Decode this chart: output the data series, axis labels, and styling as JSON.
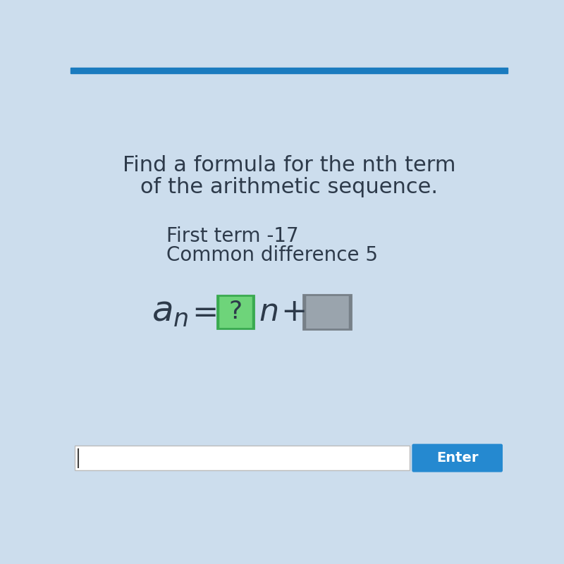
{
  "background_color": "#ccdded",
  "title_line1": "Find a formula for the nth term",
  "title_line2": "of the arithmetic sequence.",
  "info_line1": "First term -17",
  "info_line2": "Common difference 5",
  "text_color": "#2d3a4a",
  "green_box_color": "#6ed47a",
  "green_box_edge": "#3aaa50",
  "gray_box_color": "#9aa4ad",
  "gray_box_edge": "#778088",
  "enter_button_color": "#2589d0",
  "enter_text_color": "#ffffff",
  "input_bar_color": "#ffffff",
  "input_bar_edge": "#aaaaaa",
  "top_bar_color": "#1a7bbf",
  "title_fontsize": 22,
  "info_fontsize": 20,
  "formula_fontsize": 28
}
